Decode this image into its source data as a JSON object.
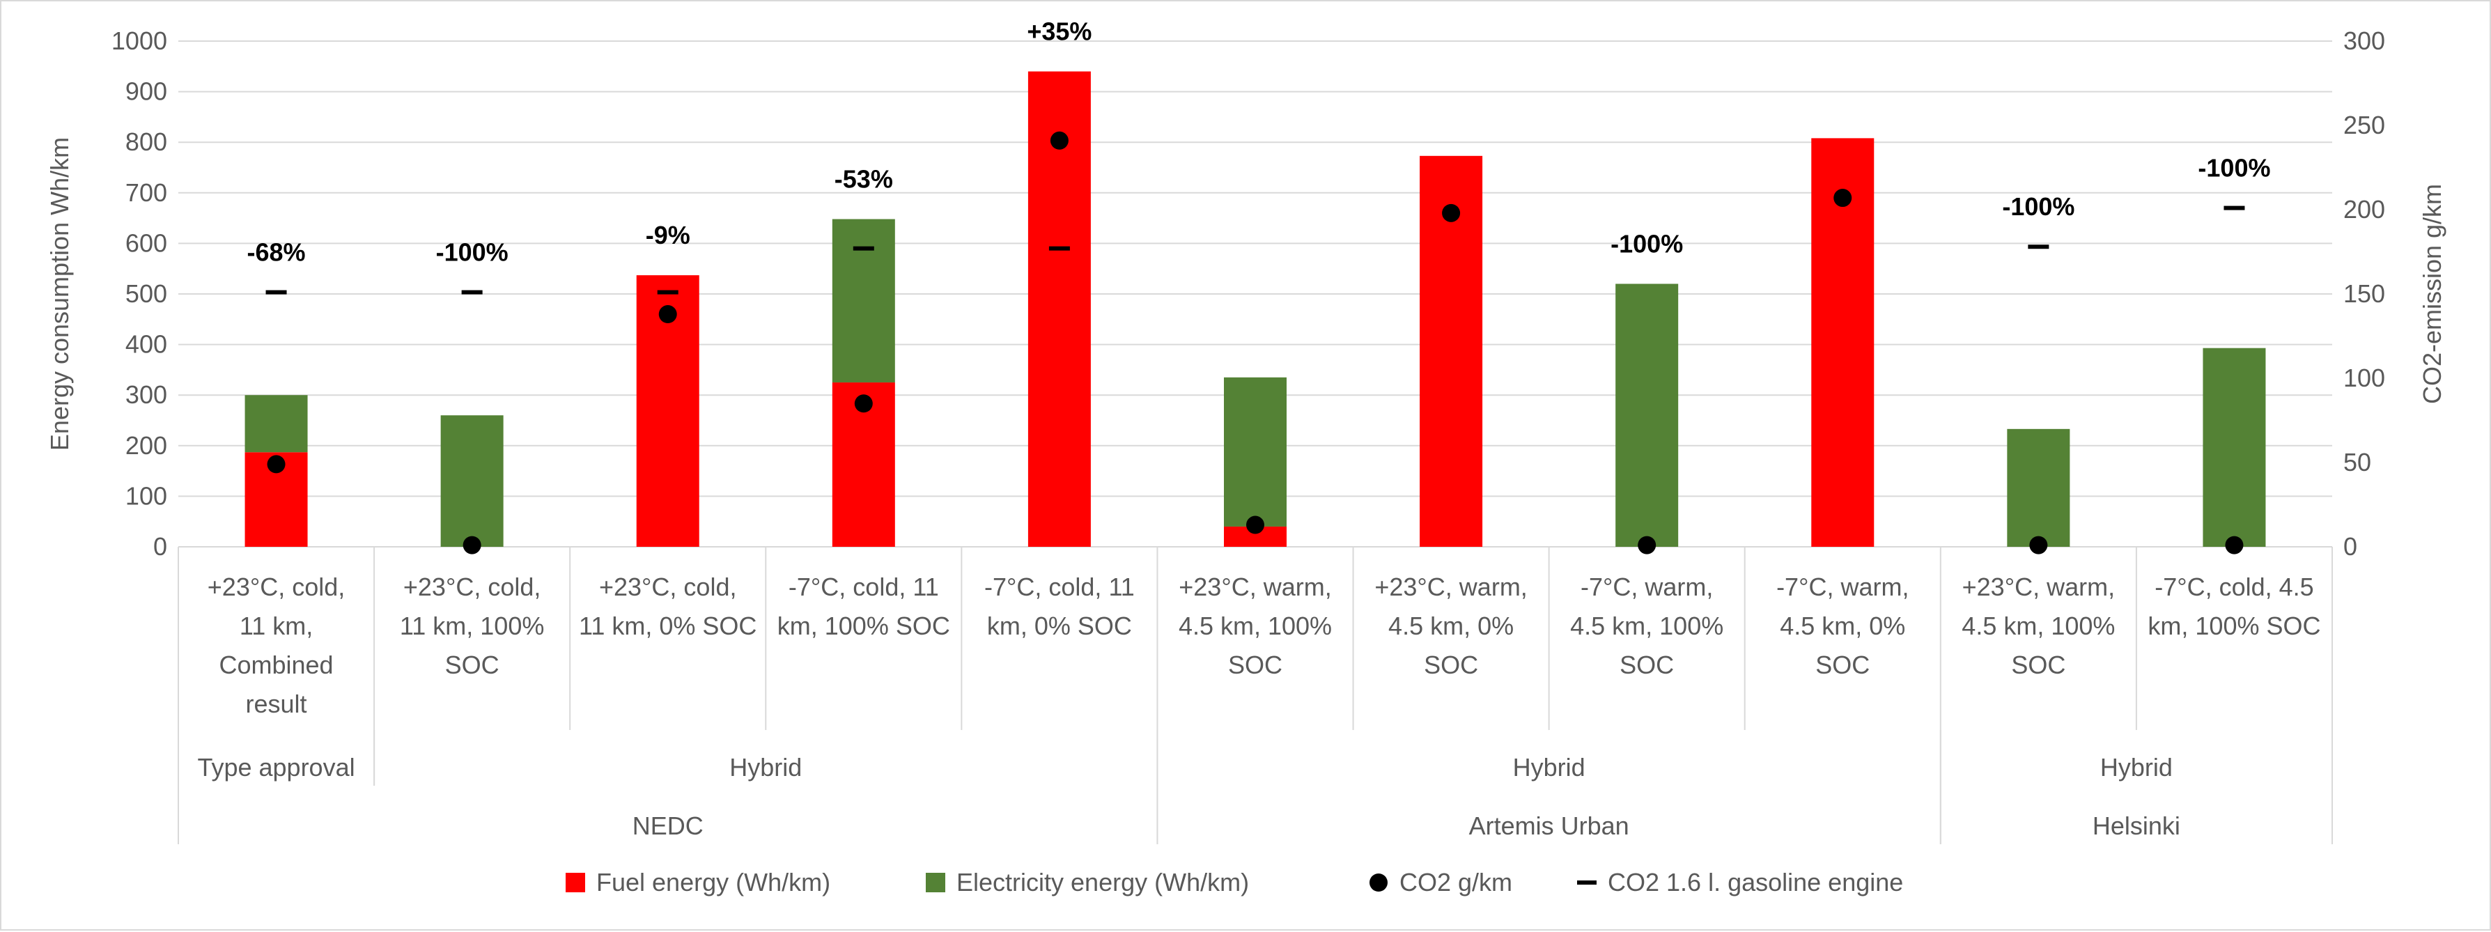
{
  "chart_data": {
    "type": "bar",
    "stacked": true,
    "y_left": {
      "label": "Energy consumption Wh/km",
      "range": [
        0,
        1000
      ],
      "ticks": [
        0,
        100,
        200,
        300,
        400,
        500,
        600,
        700,
        800,
        900,
        1000
      ]
    },
    "y_right": {
      "label": "CO2-emission g/km",
      "range": [
        0,
        300
      ],
      "ticks": [
        0,
        50,
        100,
        150,
        200,
        250,
        300
      ]
    },
    "categories": [
      [
        "+23°C, cold,",
        "11 km,",
        "Combined",
        "result"
      ],
      [
        "+23°C, cold,",
        "11 km, 100%",
        "SOC"
      ],
      [
        "+23°C, cold,",
        "11 km, 0% SOC"
      ],
      [
        "-7°C, cold, 11",
        "km, 100% SOC"
      ],
      [
        "-7°C, cold, 11",
        "km, 0% SOC"
      ],
      [
        "+23°C, warm,",
        "4.5 km, 100%",
        "SOC"
      ],
      [
        "+23°C, warm,",
        "4.5 km, 0%",
        "SOC"
      ],
      [
        "-7°C, warm,",
        "4.5 km, 100%",
        "SOC"
      ],
      [
        "-7°C, warm,",
        "4.5 km, 0%",
        "SOC"
      ],
      [
        "+23°C, warm,",
        "4.5 km, 100%",
        "SOC"
      ],
      [
        "-7°C, cold, 4.5",
        "km, 100% SOC"
      ]
    ],
    "group_level1": [
      {
        "label": "Type approval",
        "start": 0,
        "end": 0
      },
      {
        "label": "Hybrid",
        "start": 1,
        "end": 4
      },
      {
        "label": "Hybrid",
        "start": 5,
        "end": 8
      },
      {
        "label": "Hybrid",
        "start": 9,
        "end": 10
      }
    ],
    "group_level2": [
      {
        "label": "NEDC",
        "start": 0,
        "end": 4
      },
      {
        "label": "Artemis Urban",
        "start": 5,
        "end": 8
      },
      {
        "label": "Helsinki",
        "start": 9,
        "end": 10
      }
    ],
    "series": [
      {
        "name": "Fuel energy (Wh/km)",
        "color": "#ff0000",
        "axis": "left",
        "kind": "bar",
        "values": [
          187,
          0,
          537,
          325,
          940,
          40,
          773,
          0,
          808,
          0,
          0
        ]
      },
      {
        "name": "Electricity energy (Wh/km)",
        "color": "#548235",
        "axis": "left",
        "kind": "bar",
        "values": [
          113,
          260,
          0,
          323,
          0,
          295,
          0,
          520,
          0,
          233,
          393
        ]
      },
      {
        "name": "CO2 g/km",
        "color": "#000000",
        "axis": "right",
        "kind": "marker-circle",
        "values": [
          49,
          1,
          138,
          85,
          241,
          13,
          198,
          1,
          207,
          1,
          1
        ]
      },
      {
        "name": "CO2 1.6 l. gasoline engine",
        "color": "#000000",
        "axis": "right",
        "kind": "marker-dash",
        "values": [
          151,
          151,
          151,
          177,
          177,
          null,
          null,
          null,
          null,
          178,
          201
        ]
      }
    ],
    "annotations": [
      "-68%",
      "-100%",
      "-9%",
      "-53%",
      "+35%",
      "",
      "",
      "-100%",
      "",
      "-100%",
      "-100%"
    ],
    "legend_position": "bottom"
  }
}
